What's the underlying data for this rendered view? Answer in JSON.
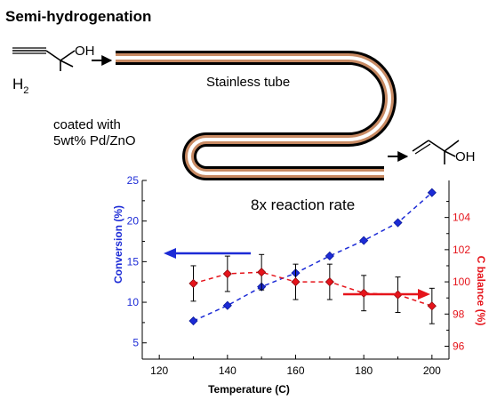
{
  "diagram": {
    "title": "Semi-hydrogenation",
    "reactant_oh": "OH",
    "h2_main": "H",
    "h2_sub": "2",
    "tube_label": "Stainless tube",
    "coating_line1": "coated with",
    "coating_line2": "5wt% Pd/ZnO",
    "product_oh": "OH",
    "rate_label": "8x reaction rate"
  },
  "colors": {
    "conversion": "#1c2bd6",
    "c_balance": "#e5141b",
    "tube_outer": "#000000",
    "tube_coating": "#c88a63",
    "tube_inner": "#ffffff"
  },
  "chart_data": {
    "type": "scatter",
    "xlabel": "Temperature (C)",
    "xlim": [
      115,
      205
    ],
    "x_ticks": [
      "120",
      "140",
      "160",
      "180",
      "200"
    ],
    "y_left": {
      "label": "Conversion (%)",
      "lim": [
        3,
        25
      ],
      "ticks": [
        "5",
        "10",
        "15",
        "20",
        "25"
      ]
    },
    "y_right": {
      "label": "C balance (%)",
      "lim": [
        95.2,
        106.3
      ],
      "ticks": [
        "96",
        "98",
        "100",
        "102",
        "104"
      ]
    },
    "series": [
      {
        "name": "Conversion (%)",
        "axis": "left",
        "marker": "diamond",
        "x": [
          130,
          140,
          150,
          160,
          170,
          180,
          190,
          200
        ],
        "y": [
          7.7,
          9.6,
          11.9,
          13.6,
          15.7,
          17.6,
          19.8,
          23.5
        ]
      },
      {
        "name": "C balance (%)",
        "axis": "right",
        "marker": "diamond",
        "x": [
          130,
          140,
          150,
          160,
          170,
          180,
          190,
          200
        ],
        "y": [
          99.9,
          100.5,
          100.6,
          100.0,
          100.0,
          99.3,
          99.2,
          98.5
        ],
        "error": [
          1.1,
          1.1,
          1.1,
          1.1,
          1.1,
          1.1,
          1.1,
          1.1
        ]
      }
    ]
  }
}
